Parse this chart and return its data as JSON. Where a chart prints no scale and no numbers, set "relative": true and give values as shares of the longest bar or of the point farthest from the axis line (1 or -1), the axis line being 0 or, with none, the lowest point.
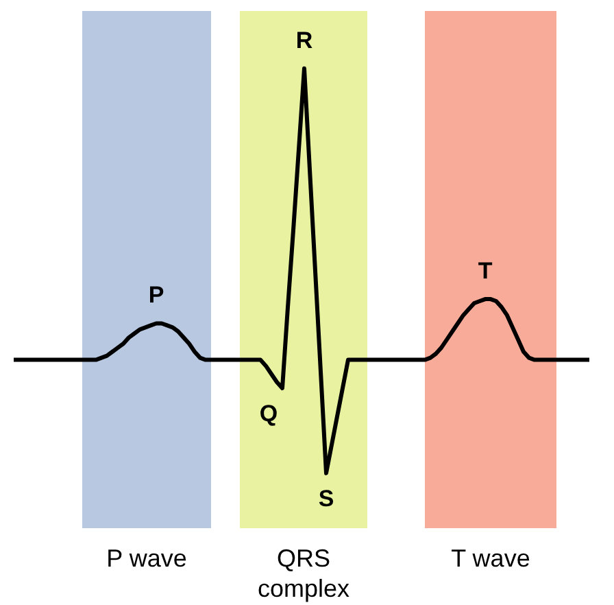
{
  "chart_data": {
    "type": "line",
    "relative": true,
    "marker": "none",
    "line_style": "solid",
    "categories": [
      null,
      null,
      null,
      null,
      null,
      null,
      null,
      null,
      null,
      null,
      null,
      null,
      null,
      null,
      null,
      null,
      null,
      null,
      null,
      null,
      null,
      null,
      null,
      null,
      null,
      null,
      null,
      null,
      null,
      null,
      null,
      null,
      null,
      null,
      null,
      null,
      null,
      null,
      null,
      null,
      null,
      null,
      null,
      null,
      null,
      null,
      null,
      null,
      null,
      null,
      null,
      null,
      null,
      null,
      null,
      null,
      null,
      null,
      null,
      null,
      null,
      null,
      null,
      null,
      null,
      null,
      null,
      null,
      null,
      null,
      null,
      null,
      null,
      null,
      null,
      null,
      null,
      null,
      null,
      null,
      null,
      null,
      null,
      null,
      null,
      null,
      null,
      null,
      null,
      null,
      null,
      null,
      null,
      null,
      null,
      null,
      null,
      null,
      null,
      null,
      null,
      null,
      null,
      null,
      null,
      null
    ],
    "series": [
      {
        "color": "#000000",
        "values": [
          0.28,
          0.28,
          0.28,
          0.28,
          0.28,
          0.28,
          0.28,
          0.28,
          0.28,
          0.28,
          0.28,
          0.28,
          0.28,
          0.28,
          0.28,
          0.28,
          0.285,
          0.29,
          0.3,
          0.31,
          0.32,
          0.335,
          0.345,
          0.355,
          0.36,
          0.365,
          0.37,
          0.37,
          0.365,
          0.36,
          0.35,
          0.335,
          0.32,
          0.3,
          0.285,
          0.28,
          0.28,
          0.28,
          0.28,
          0.28,
          0.28,
          0.28,
          0.28,
          0.28,
          0.28,
          0.28,
          0.265,
          0.245,
          0.225,
          0.21,
          0.41,
          0.6,
          0.8,
          1.0,
          0.75,
          0.5,
          0.25,
          0,
          0.07,
          0.14,
          0.21,
          0.28,
          0.28,
          0.28,
          0.28,
          0.28,
          0.28,
          0.28,
          0.28,
          0.28,
          0.28,
          0.28,
          0.28,
          0.28,
          0.28,
          0.28,
          0.285,
          0.295,
          0.31,
          0.33,
          0.35,
          0.37,
          0.39,
          0.405,
          0.42,
          0.425,
          0.43,
          0.43,
          0.425,
          0.41,
          0.39,
          0.36,
          0.33,
          0.3,
          0.285,
          0.28,
          0.28,
          0.28,
          0.28,
          0.28,
          0.28,
          0.28,
          0.28,
          0.28,
          0.28,
          0.28
        ]
      }
    ],
    "annotations": [
      "P",
      "Q",
      "R",
      "S",
      "T",
      "P wave",
      "QRS complex",
      "T wave"
    ]
  }
}
